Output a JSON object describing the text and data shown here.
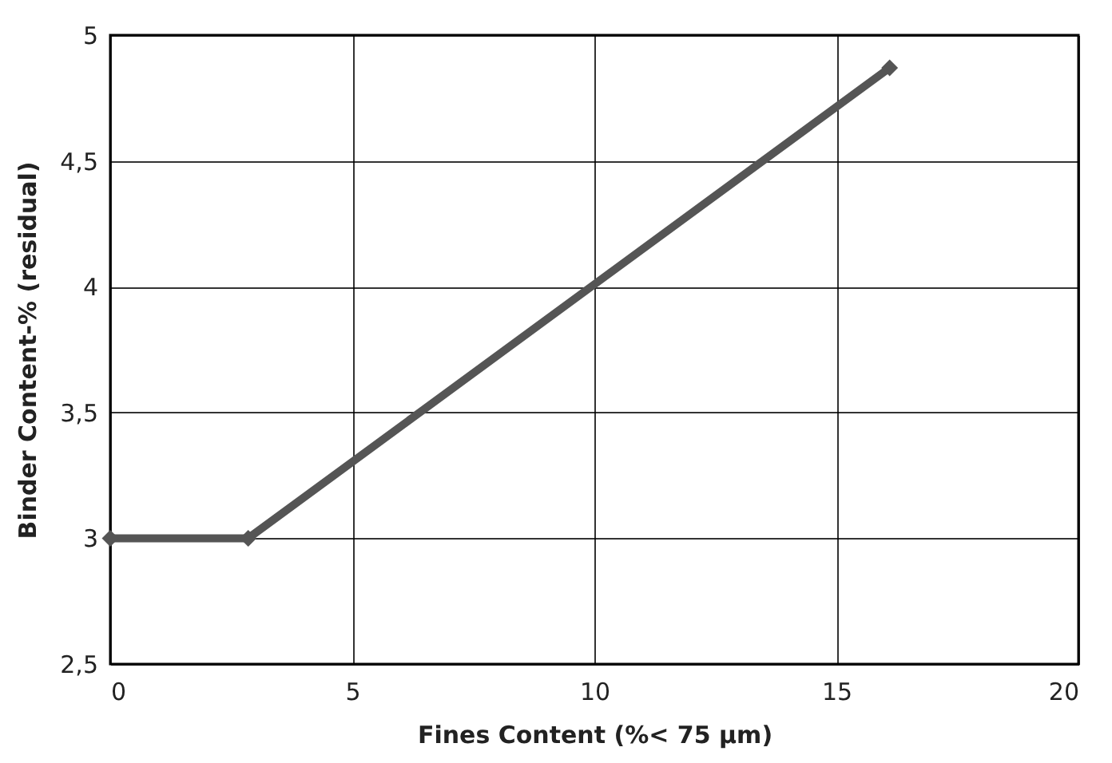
{
  "chart_data": {
    "type": "line",
    "xlabel": "Fines Content  (%< 75 µm)",
    "ylabel": "Binder Content-% (residual)",
    "x": [
      0,
      2.85,
      16.1
    ],
    "series": [
      {
        "color": "#555555",
        "values": [
          3.0,
          3.0,
          4.87
        ]
      }
    ],
    "xlim": [
      0,
      20
    ],
    "xticks": [
      0,
      5,
      10,
      15,
      20
    ],
    "ylim": [
      2.5,
      5
    ],
    "yticks": [
      {
        "value": 2.5,
        "label": "2,5"
      },
      3,
      {
        "value": 3.5,
        "label": "3,5"
      },
      4,
      {
        "value": 4.5,
        "label": "4,5"
      },
      5
    ],
    "grid": true,
    "marker": "diamond",
    "line_style": "solid"
  }
}
